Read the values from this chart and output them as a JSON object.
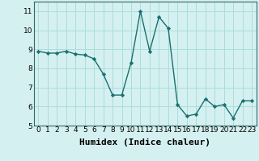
{
  "x": [
    0,
    1,
    2,
    3,
    4,
    5,
    6,
    7,
    8,
    9,
    10,
    11,
    12,
    13,
    14,
    15,
    16,
    17,
    18,
    19,
    20,
    21,
    22,
    23
  ],
  "y": [
    8.9,
    8.8,
    8.8,
    8.9,
    8.75,
    8.7,
    8.5,
    7.7,
    6.6,
    6.6,
    8.3,
    11.0,
    8.9,
    10.7,
    10.1,
    6.1,
    5.5,
    5.6,
    6.4,
    6.0,
    6.1,
    5.4,
    6.3,
    6.3
  ],
  "xlabel": "Humidex (Indice chaleur)",
  "line_color": "#1a7070",
  "marker": "D",
  "marker_size": 2.2,
  "line_width": 1.0,
  "bg_color": "#d5f0f0",
  "grid_color": "#aadddd",
  "xlim": [
    -0.5,
    23.5
  ],
  "ylim": [
    5.0,
    11.5
  ],
  "yticks": [
    5,
    6,
    7,
    8,
    9,
    10,
    11
  ],
  "xticks": [
    0,
    1,
    2,
    3,
    4,
    5,
    6,
    7,
    8,
    9,
    10,
    11,
    12,
    13,
    14,
    15,
    16,
    17,
    18,
    19,
    20,
    21,
    22,
    23
  ],
  "tick_fontsize": 6.5,
  "xlabel_fontsize": 8.0,
  "spine_color": "#336666"
}
